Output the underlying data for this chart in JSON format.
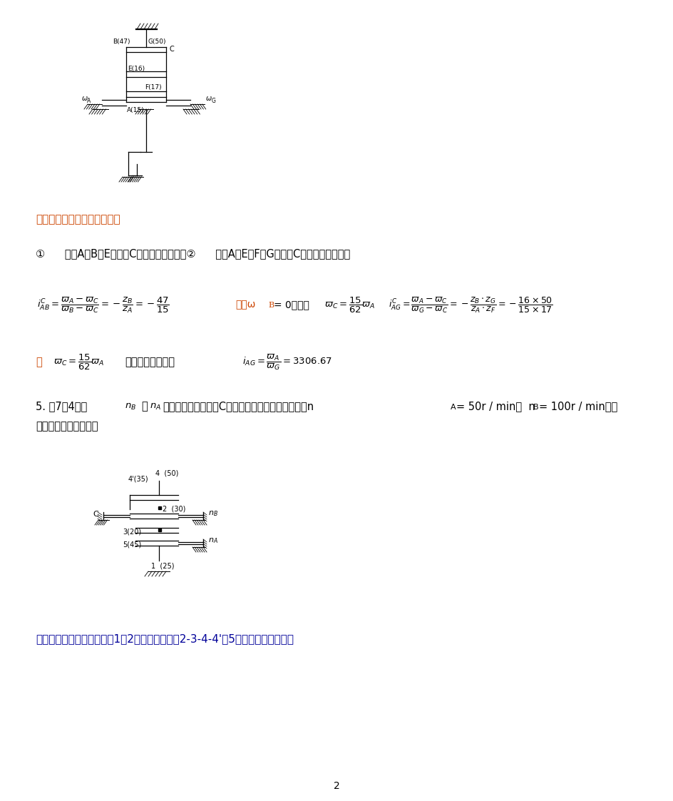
{
  "bg_color": "#ffffff",
  "text_color": "#000000",
  "answer_color": "#cc4400",
  "answer_color2": "#000099",
  "formula_color": "#cc0000",
  "black": "#000000",
  "ans1": "答：将轮系分为两个周转轮系",
  "item1": "①      齿轮A、B、E和系杆C组成的行星轮系；②      齿轮A、E、F、G和系杆C组成的差动轮系。",
  "q5_line1a": "5. 图7－4中，",
  "q5_line1b": "，",
  "q5_line1c": "为轮系的输入运动，C为轮系的运动输出构件。已知n",
  "q5_line1d": "= 50r / min，  n",
  "q5_line1e": "= 100r / min，确",
  "q5_line2": "定转速的大小和转向。",
  "ans2": "答：该轮系是由定轴轮系（1－2）和周转轮系（2-3-4-4'－5）组成的混合轮系。",
  "page_num": "2",
  "zh_font": "SimSun",
  "zh_font_alt": "WenQuanYi Micro Hei"
}
